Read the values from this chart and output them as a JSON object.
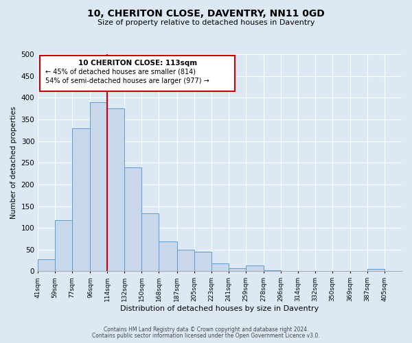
{
  "title": "10, CHERITON CLOSE, DAVENTRY, NN11 0GD",
  "subtitle": "Size of property relative to detached houses in Daventry",
  "xlabel": "Distribution of detached houses by size in Daventry",
  "ylabel": "Number of detached properties",
  "bar_left_edges": [
    41,
    59,
    77,
    96,
    114,
    132,
    150,
    168,
    187,
    205,
    223,
    241,
    259,
    278,
    296,
    314,
    332,
    350,
    369,
    387
  ],
  "bar_heights": [
    27,
    117,
    330,
    390,
    375,
    240,
    133,
    68,
    50,
    45,
    18,
    7,
    13,
    2,
    0,
    0,
    0,
    0,
    0,
    5
  ],
  "bar_widths": [
    18,
    18,
    19,
    18,
    18,
    18,
    18,
    19,
    18,
    18,
    18,
    18,
    19,
    18,
    18,
    18,
    18,
    19,
    18,
    18
  ],
  "bar_color": "#c8d8ea",
  "bar_edge_color": "#5b9bd5",
  "tick_labels": [
    "41sqm",
    "59sqm",
    "77sqm",
    "96sqm",
    "114sqm",
    "132sqm",
    "150sqm",
    "168sqm",
    "187sqm",
    "205sqm",
    "223sqm",
    "241sqm",
    "259sqm",
    "278sqm",
    "296sqm",
    "314sqm",
    "332sqm",
    "350sqm",
    "369sqm",
    "387sqm",
    "405sqm"
  ],
  "tick_positions": [
    41,
    59,
    77,
    96,
    114,
    132,
    150,
    168,
    187,
    205,
    223,
    241,
    259,
    278,
    296,
    314,
    332,
    350,
    369,
    387,
    405
  ],
  "property_line_x": 114,
  "property_line_color": "#cc0000",
  "ylim": [
    0,
    500
  ],
  "yticks": [
    0,
    50,
    100,
    150,
    200,
    250,
    300,
    350,
    400,
    450,
    500
  ],
  "annotation_title": "10 CHERITON CLOSE: 113sqm",
  "annotation_line1": "← 45% of detached houses are smaller (814)",
  "annotation_line2": "54% of semi-detached houses are larger (977) →",
  "bg_color": "#dce9f5",
  "grid_color": "#ffffff",
  "footnote1": "Contains HM Land Registry data © Crown copyright and database right 2024.",
  "footnote2": "Contains public sector information licensed under the Open Government Licence v3.0."
}
